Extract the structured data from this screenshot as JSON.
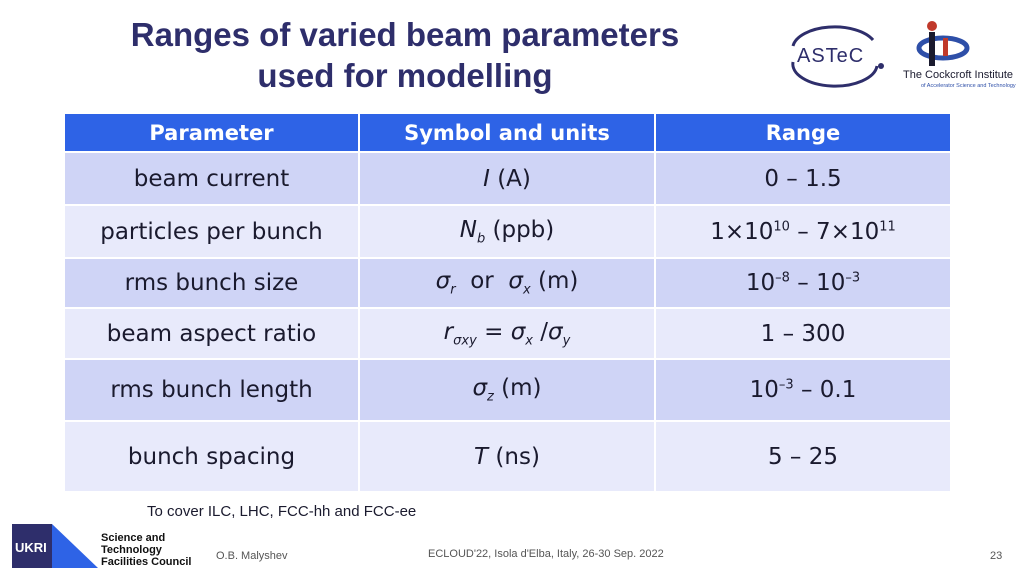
{
  "title": {
    "line1": "Ranges of varied beam parameters",
    "line2": "used for modelling"
  },
  "logos": {
    "astec": "ASTeC",
    "cockcroft_name": "The Cockcroft Institute",
    "cockcroft_sub": "of Accelerator Science and Technology"
  },
  "table": {
    "headers": [
      "Parameter",
      "Symbol and units",
      "Range"
    ],
    "rows": [
      {
        "parameter": "beam current",
        "sym": "I",
        "unit": " (A)",
        "range": "0 – 1.5"
      },
      {
        "parameter": "particles per bunch",
        "sym": "N",
        "sub": "b",
        "unit": " (ppb)",
        "range_a": "1×10",
        "exp_a": "10",
        "range_mid": " – 7×10",
        "exp_b": "11"
      },
      {
        "parameter": "rms bunch size",
        "sym1": "σ",
        "sub1": "r",
        "or": "  or  ",
        "sym2": "σ",
        "sub2": "x",
        "unit": " (m)",
        "base_a": "10",
        "exp_a": "–8",
        "dash": " – ",
        "base_b": "10",
        "exp_b": "–3"
      },
      {
        "parameter": "beam aspect ratio",
        "sym": "r",
        "sub": "σxy",
        "eq": " = ",
        "sym2": "σ",
        "sub2": "x",
        "slash": " /",
        "sym3": "σ",
        "sub3": "y",
        "range": "1 – 300"
      },
      {
        "parameter": "rms bunch length",
        "sym": "σ",
        "sub": "z",
        "unit": " (m)",
        "base_a": "10",
        "exp_a": "–3",
        "rest": " – 0.1"
      },
      {
        "parameter": "bunch spacing",
        "sym": "T",
        "unit": " (ns)",
        "range": "5 – 25"
      }
    ]
  },
  "note": "To cover ILC, LHC, FCC-hh and FCC-ee",
  "footer": {
    "ukri": "UKRI",
    "stfc": [
      "Science and",
      "Technology",
      "Facilities Council"
    ],
    "author": "O.B. Malyshev",
    "conference": "ECLOUD'22, Isola d'Elba, Italy, 26-30 Sep. 2022",
    "page": "23"
  },
  "colors": {
    "title": "#2e2e6b",
    "header_bg": "#2e63e6",
    "row_dark": "#cfd4f6",
    "row_light": "#e8eafb"
  }
}
